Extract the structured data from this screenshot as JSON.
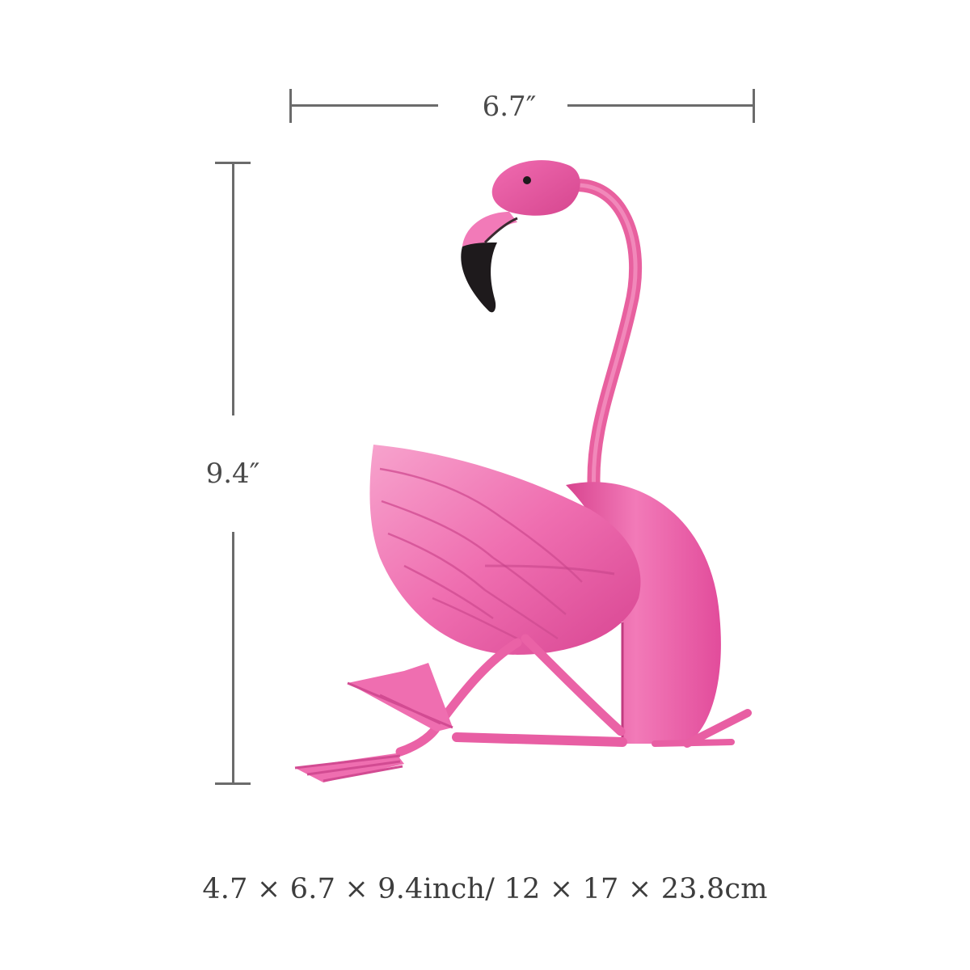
{
  "dimensions": {
    "width_label": "6.7″",
    "height_label": "9.4″"
  },
  "caption": "4.7 × 6.7 × 9.4inch/ 12 × 17 × 23.8cm",
  "colors": {
    "flamingo_body": "#ec5aa6",
    "flamingo_light": "#f48fc3",
    "flamingo_dark": "#c83a86",
    "beak_tip": "#1e1a1c",
    "dimension_line": "#6b6b6b",
    "text": "#4a4a4a"
  },
  "icons": {
    "figure": "flamingo-figurine-icon"
  }
}
